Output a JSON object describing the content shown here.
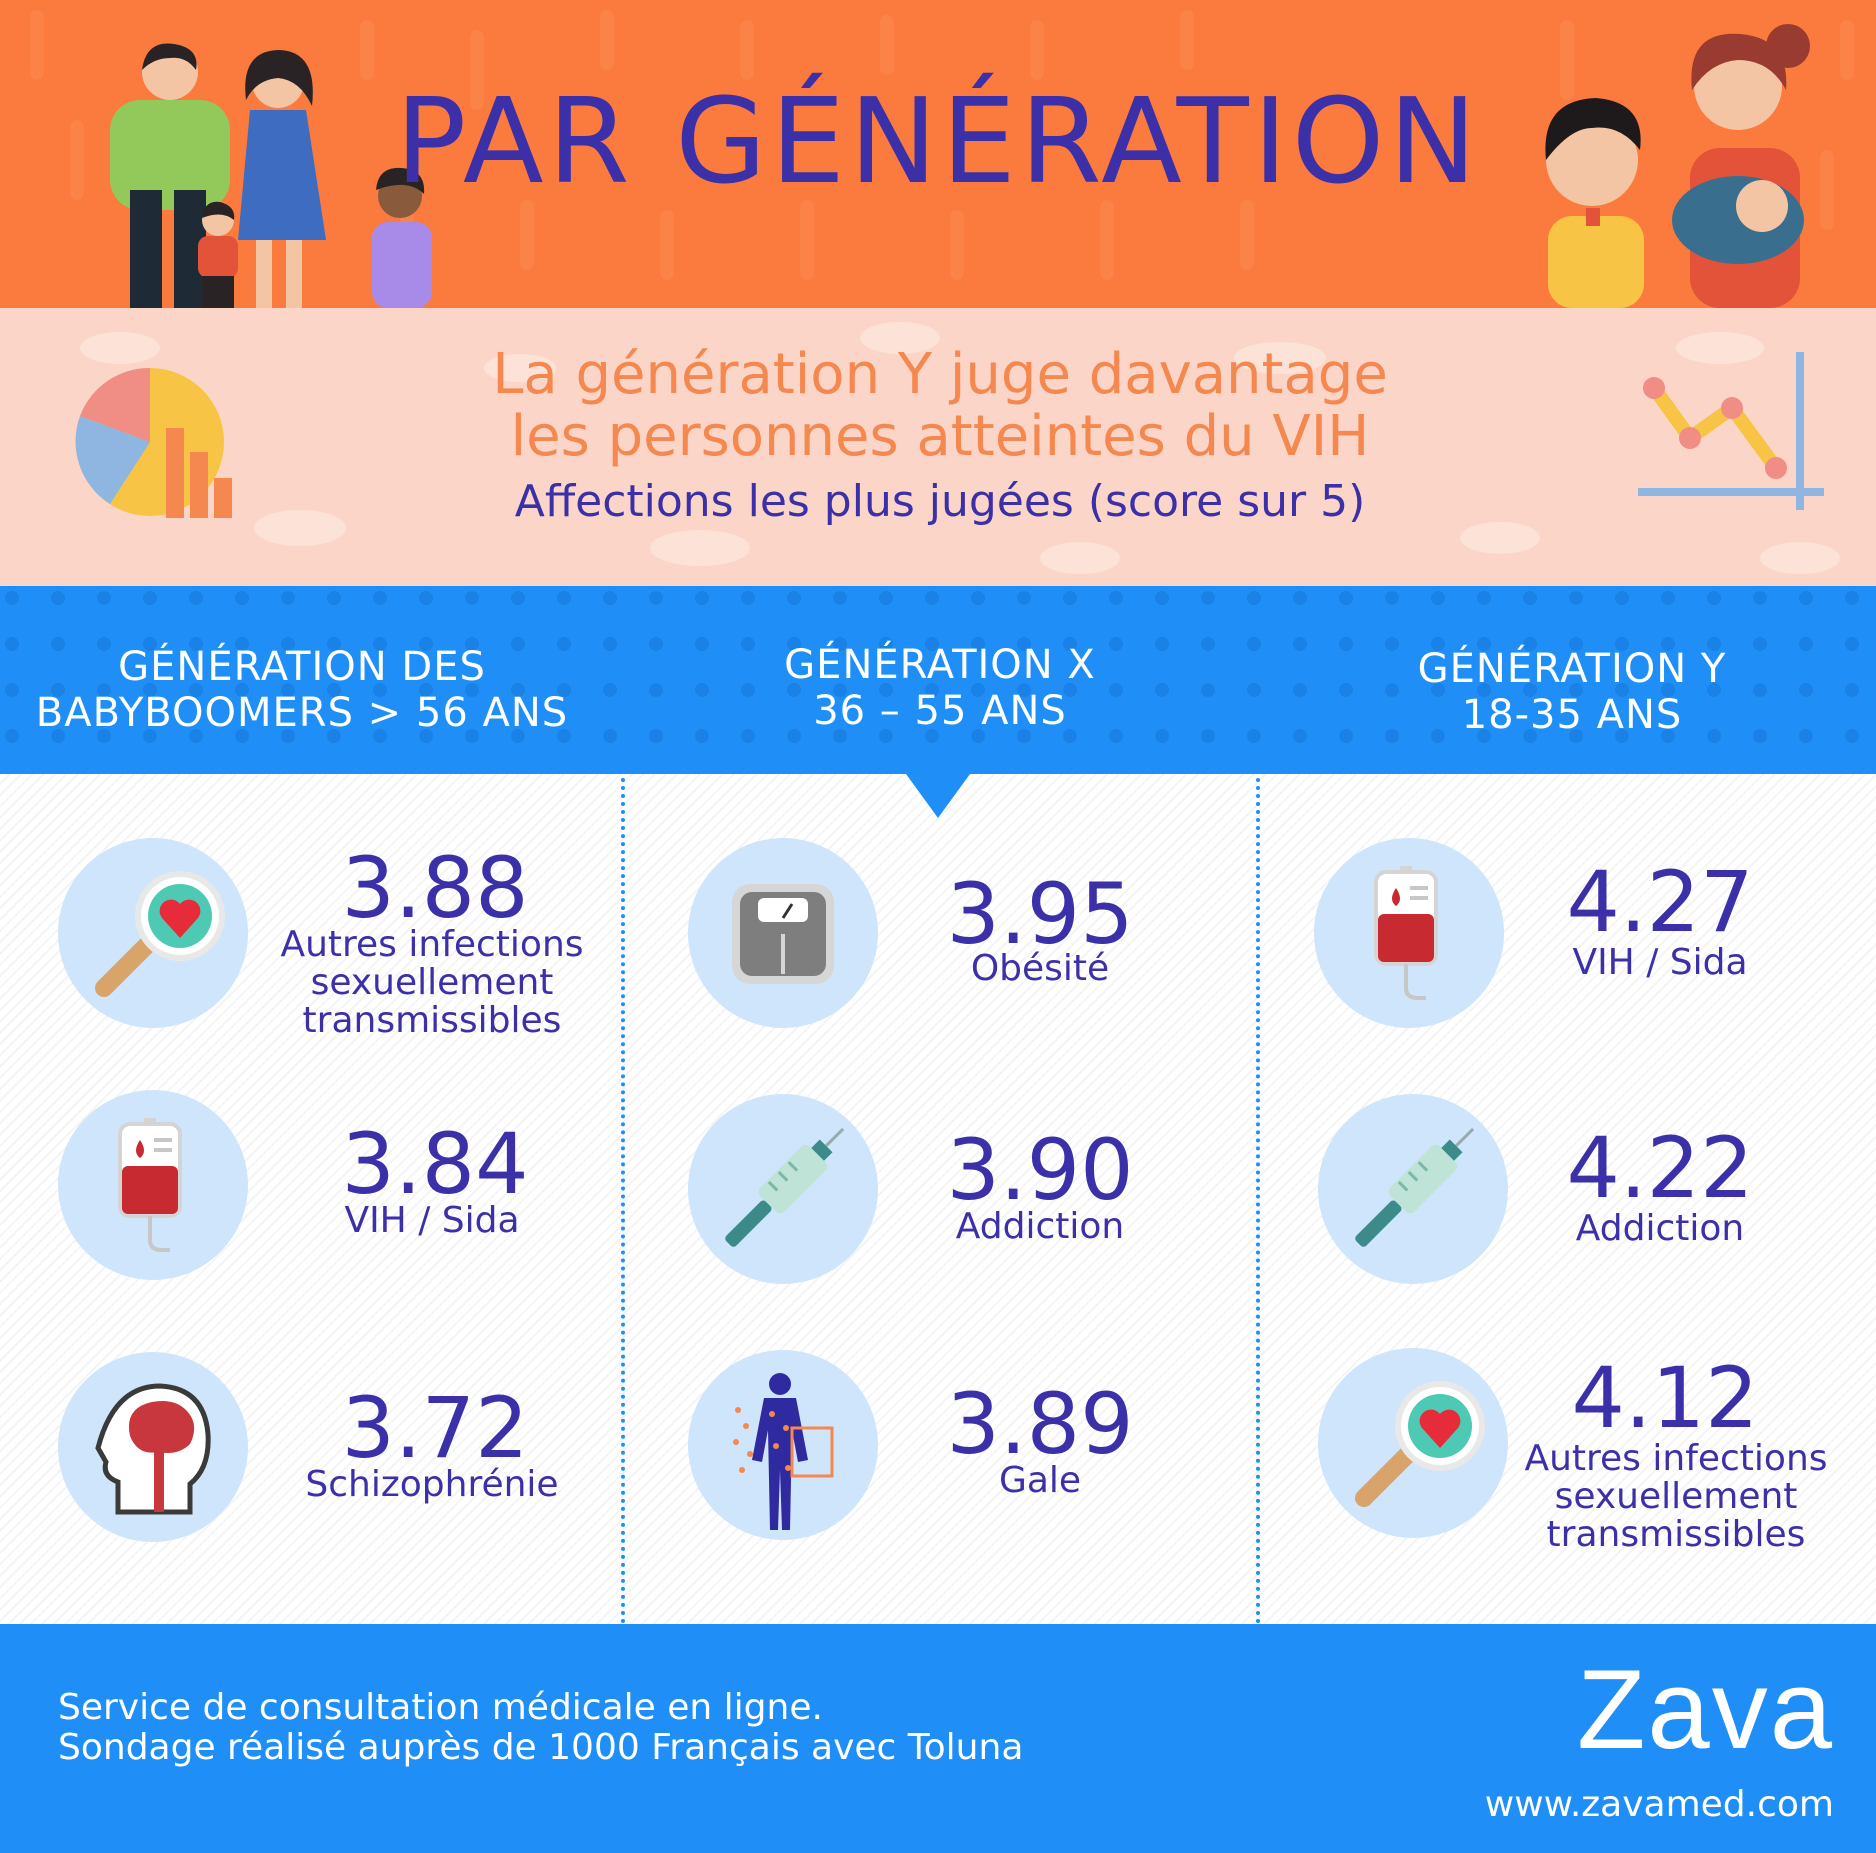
{
  "header": {
    "title": "PAR GÉNÉRATION"
  },
  "intro": {
    "headline_line1": "La génération Y juge davantage",
    "headline_line2": "les personnes atteintes du VIH",
    "subtitle": "Affections les plus jugées (score sur 5)"
  },
  "generations": [
    {
      "name_line1": "GÉNÉRATION DES",
      "name_line2": "BABYBOOMERS > 56 ANS",
      "items": [
        {
          "value": "3.88",
          "label": [
            "Autres infections",
            "sexuellement",
            "transmissibles"
          ],
          "icon": "magnifier-heart-icon"
        },
        {
          "value": "3.84",
          "label": [
            "VIH / Sida"
          ],
          "icon": "blood-bag-icon"
        },
        {
          "value": "3.72",
          "label": [
            "Schizophrénie"
          ],
          "icon": "brain-head-icon"
        }
      ]
    },
    {
      "name_line1": "GÉNÉRATION X",
      "name_line2": "36 – 55 ANS",
      "items": [
        {
          "value": "3.95",
          "label": [
            "Obésité"
          ],
          "icon": "weight-scale-icon"
        },
        {
          "value": "3.90",
          "label": [
            "Addiction"
          ],
          "icon": "syringe-icon"
        },
        {
          "value": "3.89",
          "label": [
            "Gale"
          ],
          "icon": "body-rash-icon"
        }
      ]
    },
    {
      "name_line1": "GÉNÉRATION Y",
      "name_line2": "18-35 ANS",
      "items": [
        {
          "value": "4.27",
          "label": [
            "VIH / Sida"
          ],
          "icon": "blood-bag-icon"
        },
        {
          "value": "4.22",
          "label": [
            "Addiction"
          ],
          "icon": "syringe-icon"
        },
        {
          "value": "4.12",
          "label": [
            "Autres infections",
            "sexuellement",
            "transmissibles"
          ],
          "icon": "magnifier-heart-icon"
        }
      ]
    }
  ],
  "footer": {
    "note_line1": "Service de consultation médicale en ligne.",
    "note_line2": "Sondage réalisé auprès de 1000 Français avec Toluna",
    "brand": "Zava",
    "url": "www.zavamed.com"
  },
  "colors": {
    "orange": "#fb7a3d",
    "peach": "#fbd6c8",
    "blue": "#1f8ff7",
    "indigo": "#3b30a8",
    "icon_circle": "#cfe5fb"
  }
}
